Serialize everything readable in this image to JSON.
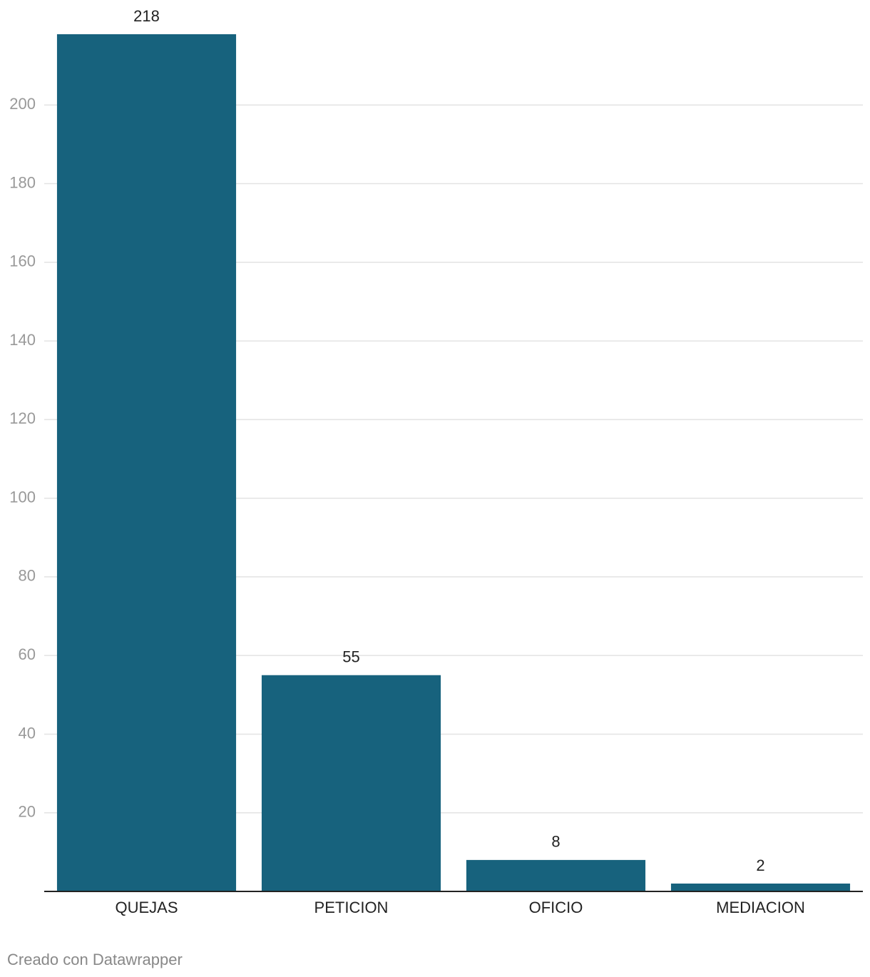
{
  "chart_data": {
    "type": "bar",
    "categories": [
      "QUEJAS",
      "PETICION",
      "OFICIO",
      "MEDIACION"
    ],
    "values": [
      218,
      55,
      8,
      2
    ],
    "color": "#17627d",
    "ylim": [
      0,
      218
    ],
    "yticks": [
      20,
      40,
      60,
      80,
      100,
      120,
      140,
      160,
      180,
      200
    ],
    "grid": true,
    "footer": "Creado con Datawrapper"
  }
}
